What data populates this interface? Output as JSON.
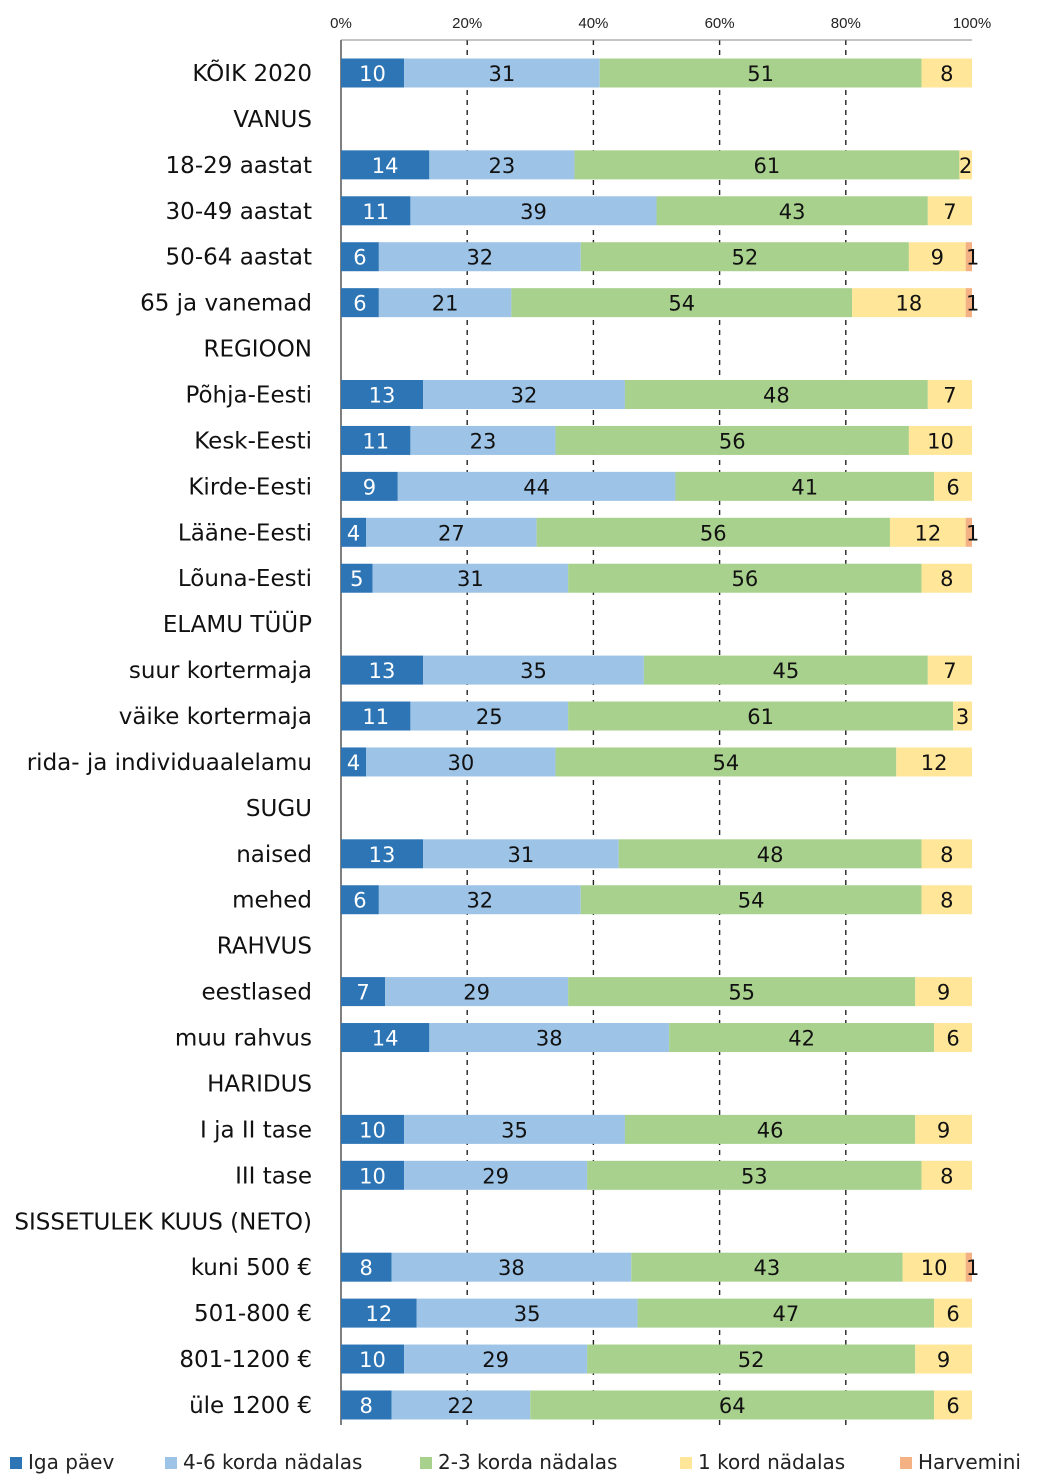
{
  "chart_data": {
    "type": "bar",
    "orientation": "horizontal",
    "stacked": true,
    "xlim": [
      0,
      100
    ],
    "x_ticks": [
      "0%",
      "20%",
      "40%",
      "60%",
      "80%",
      "100%"
    ],
    "grid": "vertical dashed",
    "legend_position": "bottom",
    "categories": [
      "KÕIK 2020",
      "VANUS",
      "18-29 aastat",
      "30-49 aastat",
      "50-64 aastat",
      "65 ja vanemad",
      "REGIOON",
      "Põhja-Eesti",
      "Kesk-Eesti",
      "Kirde-Eesti",
      "Lääne-Eesti",
      "Lõuna-Eesti",
      "ELAMU TÜÜP",
      "suur kortermaja",
      "väike kortermaja",
      "rida- ja individuaalelamu",
      "SUGU",
      "naised",
      "mehed",
      "RAHVUS",
      "eestlased",
      "muu rahvus",
      "HARIDUS",
      "I ja II tase",
      "III tase",
      "SISSETULEK KUUS (NETO)",
      "kuni 500 €",
      "501-800 €",
      "801-1200 €",
      "üle 1200 €"
    ],
    "series": [
      {
        "name": "Iga päev",
        "color": "#2e75b6",
        "values": [
          10,
          null,
          14,
          11,
          6,
          6,
          null,
          13,
          11,
          9,
          4,
          5,
          null,
          13,
          11,
          4,
          null,
          13,
          6,
          null,
          7,
          14,
          null,
          10,
          10,
          null,
          8,
          12,
          10,
          8
        ]
      },
      {
        "name": "4-6 korda nädalas",
        "color": "#9dc3e6",
        "values": [
          31,
          null,
          23,
          39,
          32,
          21,
          null,
          32,
          23,
          44,
          27,
          31,
          null,
          35,
          25,
          30,
          null,
          31,
          32,
          null,
          29,
          38,
          null,
          35,
          29,
          null,
          38,
          35,
          29,
          22
        ]
      },
      {
        "name": "2-3 korda nädalas",
        "color": "#a9d18e",
        "values": [
          51,
          null,
          61,
          43,
          52,
          54,
          null,
          48,
          56,
          41,
          56,
          56,
          null,
          45,
          61,
          54,
          null,
          48,
          54,
          null,
          55,
          42,
          null,
          46,
          53,
          null,
          43,
          47,
          52,
          64
        ]
      },
      {
        "name": "1 kord nädalas",
        "color": "#ffe699",
        "values": [
          8,
          null,
          2,
          7,
          9,
          18,
          null,
          7,
          10,
          6,
          12,
          8,
          null,
          7,
          3,
          12,
          null,
          8,
          8,
          null,
          9,
          6,
          null,
          9,
          8,
          null,
          10,
          6,
          9,
          6
        ]
      },
      {
        "name": "Harvemini",
        "color": "#f4b183",
        "values": [
          null,
          null,
          null,
          null,
          1,
          1,
          null,
          null,
          null,
          null,
          1,
          null,
          null,
          null,
          null,
          null,
          null,
          null,
          null,
          null,
          null,
          null,
          null,
          null,
          null,
          null,
          1,
          null,
          null,
          null
        ]
      }
    ]
  }
}
